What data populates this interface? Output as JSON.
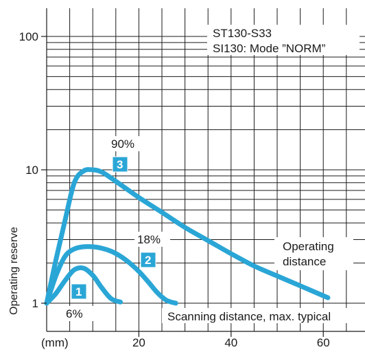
{
  "chart_data": {
    "type": "line",
    "title": "",
    "xlabel": "(mm)",
    "ylabel": "Operating reserve",
    "x_scale": "linear",
    "y_scale": "log",
    "xlim": [
      0,
      70
    ],
    "ylim": [
      0.8,
      200
    ],
    "x_ticks": [
      20,
      40,
      60
    ],
    "x_tick_labels": [
      "20",
      "40",
      "60"
    ],
    "y_ticks": [
      1,
      10,
      100
    ],
    "y_tick_labels": [
      "1",
      "10",
      "100"
    ],
    "grid": true,
    "line_color": "#2aa6d6",
    "legend_lines": [
      "ST130-S33",
      "SI130: Mode ”NORM”"
    ],
    "series": [
      {
        "name": "6%",
        "badge": "1",
        "x": [
          0,
          2,
          4,
          6,
          8,
          10,
          12,
          14,
          16
        ],
        "y": [
          1,
          1.18,
          1.48,
          1.78,
          1.83,
          1.62,
          1.3,
          1.08,
          1.02
        ]
      },
      {
        "name": "18%",
        "badge": "2",
        "x": [
          0,
          2,
          4,
          6,
          8,
          10,
          12,
          14,
          16,
          18,
          20,
          22,
          24,
          26,
          28
        ],
        "y": [
          1,
          1.6,
          2.25,
          2.55,
          2.65,
          2.65,
          2.58,
          2.45,
          2.25,
          2.0,
          1.73,
          1.45,
          1.2,
          1.05,
          1.0
        ]
      },
      {
        "name": "90%",
        "badge": "3",
        "x": [
          0,
          2,
          4,
          6,
          8,
          10,
          12,
          15,
          20,
          25,
          30,
          35,
          40,
          45,
          50,
          55,
          61
        ],
        "y": [
          1,
          2.1,
          4.2,
          8.0,
          9.8,
          10.0,
          9.6,
          8.2,
          6.2,
          4.8,
          3.7,
          2.95,
          2.35,
          1.9,
          1.6,
          1.35,
          1.1
        ]
      }
    ],
    "annotations": [
      "Operating distance",
      "Scanning distance, max. typical"
    ]
  },
  "labels": {
    "operating_line1": "Operating",
    "operating_line2": "distance",
    "scanning": "Scanning distance, max. typical"
  }
}
